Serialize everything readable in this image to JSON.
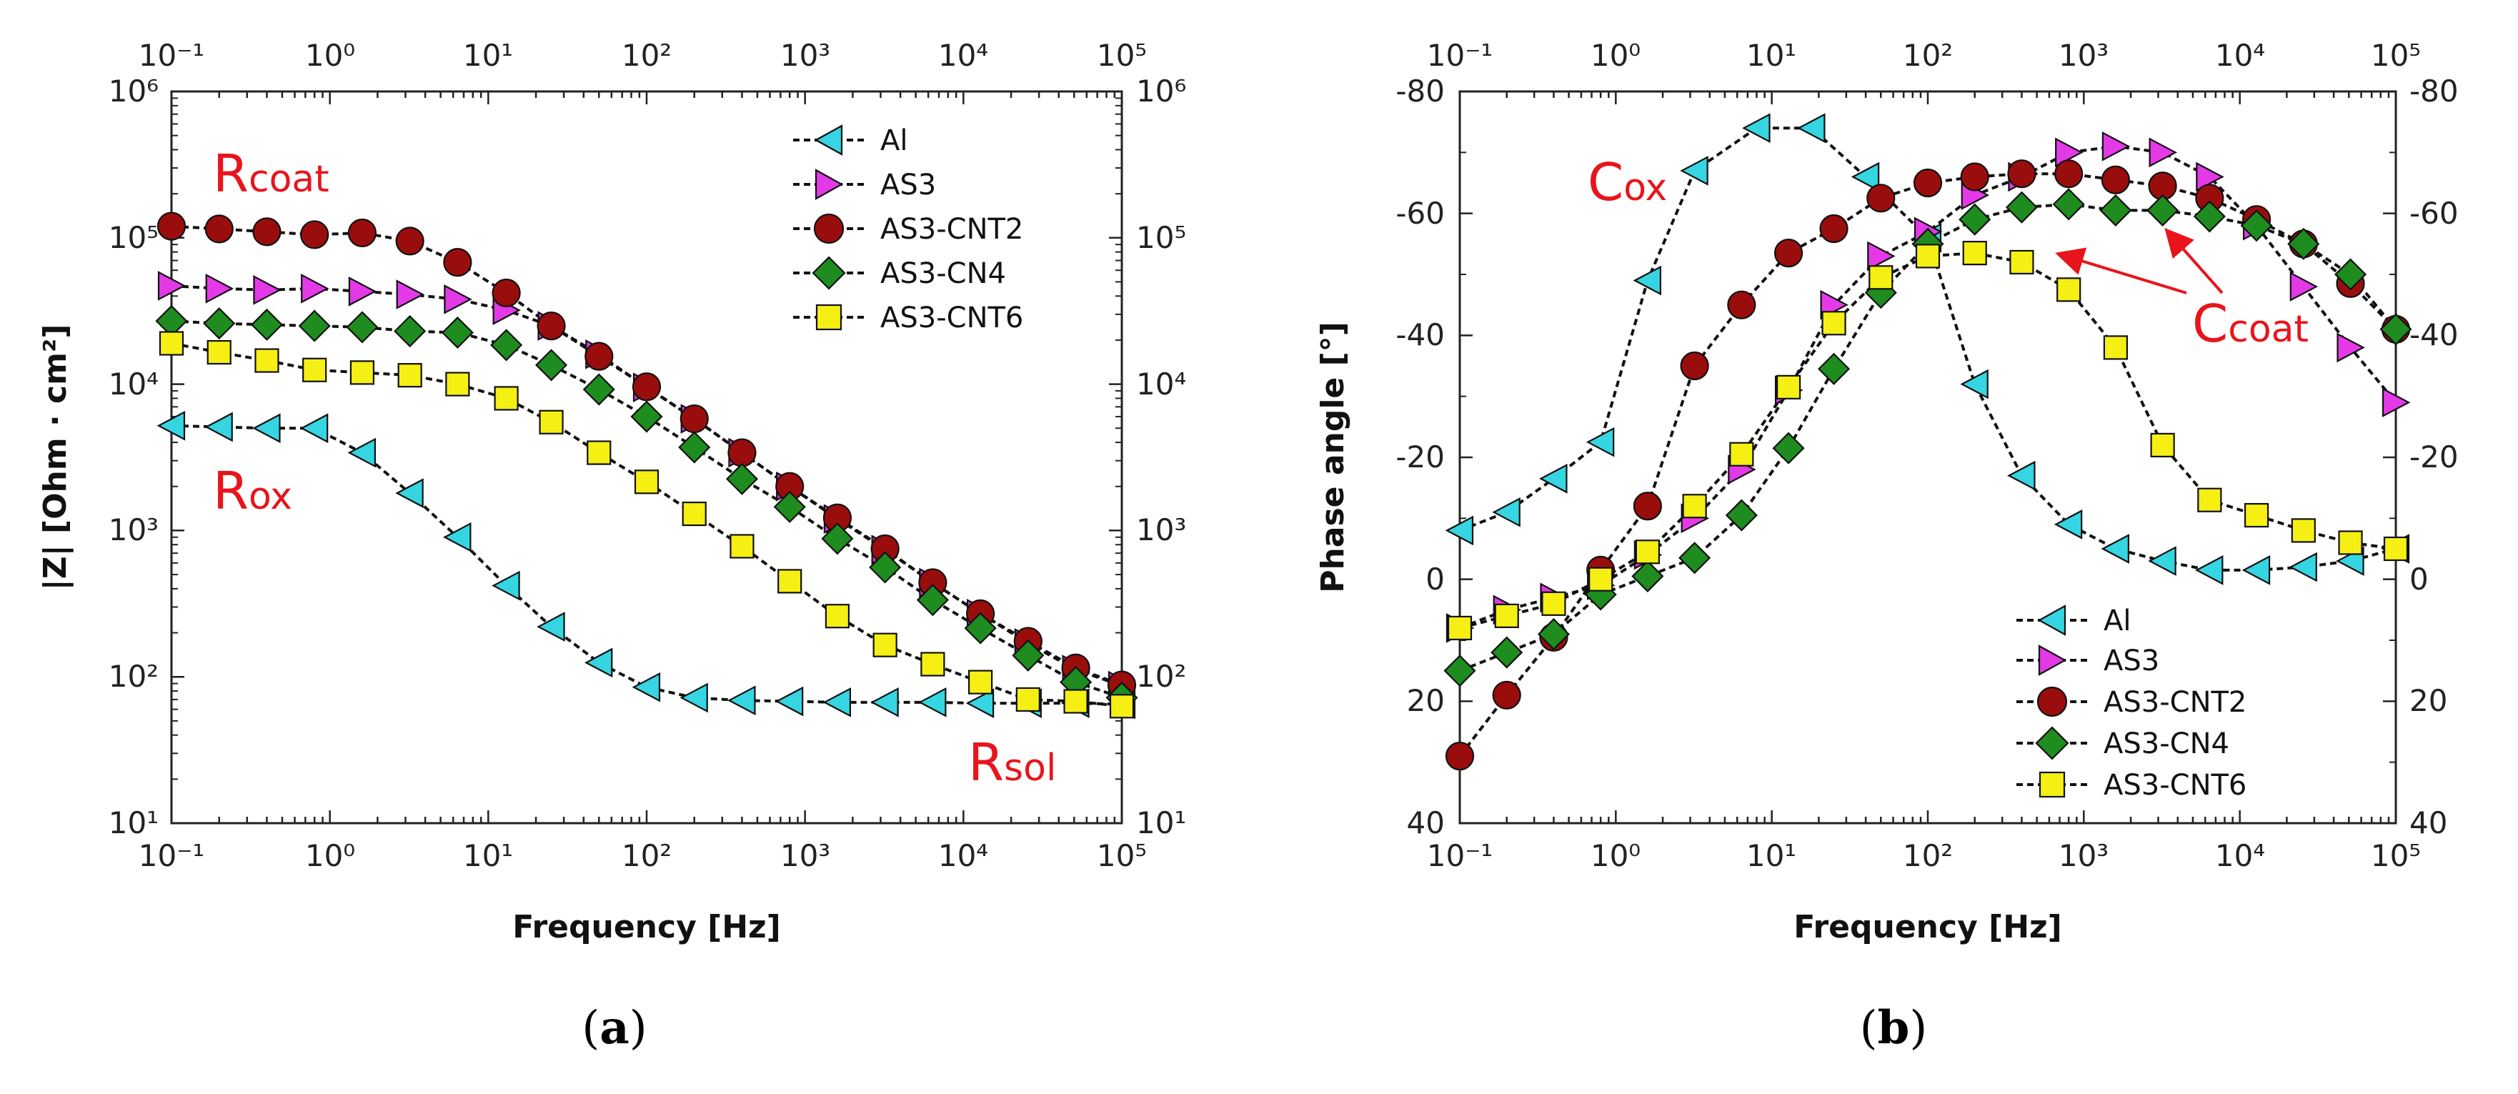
{
  "styles": {
    "colors": {
      "Al": "#35d5e2",
      "AS3": "#e339e6",
      "AS3-CNT2": "#9a0d0d",
      "AS3-CN4": "#1e8c1e",
      "AS3-CNT6": "#f6ef14",
      "annotation": "#e8141c"
    },
    "markers": {
      "Al": "triangle-left",
      "AS3": "triangle-right",
      "AS3-CNT2": "circle",
      "AS3-CN4": "diamond",
      "AS3-CNT6": "square"
    }
  },
  "chart_data": [
    {
      "id": "a",
      "type": "line",
      "caption": "(a)",
      "caption_letter": "a",
      "xlabel": "Frequency [Hz]",
      "ylabel": "|Z| [Ohm · cm²]",
      "xscale": "log",
      "yscale": "log",
      "xlim_exp": [
        -1,
        5
      ],
      "ylim_exp": [
        1,
        6
      ],
      "x_tick_labels": [
        "10⁻¹",
        "10⁰",
        "10¹",
        "10²",
        "10³",
        "10⁴",
        "10⁵"
      ],
      "y_tick_labels": [
        "10¹",
        "10²",
        "10³",
        "10⁴",
        "10⁵",
        "10⁶"
      ],
      "legend_position": "top-right",
      "annotations": [
        {
          "base": "R",
          "sub": "coat"
        },
        {
          "base": "R",
          "sub": "ox"
        },
        {
          "base": "R",
          "sub": "sol"
        }
      ],
      "series": [
        {
          "name": "Al",
          "x": [
            0.1,
            0.2,
            0.4,
            0.8,
            1.6,
            3.2,
            6.4,
            13,
            25,
            50,
            100,
            200,
            400,
            800,
            1600,
            3200,
            6400,
            12800,
            25600,
            51200,
            100000
          ],
          "y": [
            5200,
            5100,
            5000,
            5000,
            3400,
            1800,
            900,
            420,
            220,
            125,
            85,
            72,
            69,
            68,
            67,
            67,
            67,
            66,
            66,
            66,
            65
          ]
        },
        {
          "name": "AS3",
          "x": [
            0.1,
            0.2,
            0.4,
            0.8,
            1.6,
            3.2,
            6.4,
            13,
            25,
            50,
            100,
            200,
            400,
            800,
            1600,
            3200,
            6400,
            12800,
            25600,
            51200,
            100000
          ],
          "y": [
            47000,
            45000,
            44000,
            45000,
            43000,
            41000,
            38000,
            32000,
            25000,
            16000,
            9500,
            5800,
            3400,
            2000,
            1200,
            740,
            440,
            270,
            170,
            112,
            87
          ]
        },
        {
          "name": "AS3-CNT2",
          "x": [
            0.1,
            0.2,
            0.4,
            0.8,
            1.6,
            3.2,
            6.4,
            13,
            25,
            50,
            100,
            200,
            400,
            800,
            1600,
            3200,
            6400,
            12800,
            25600,
            51200,
            100000
          ],
          "y": [
            120000,
            115000,
            110000,
            105000,
            108000,
            95000,
            68000,
            42000,
            25000,
            15500,
            9600,
            5800,
            3400,
            2000,
            1220,
            750,
            440,
            270,
            175,
            115,
            88
          ]
        },
        {
          "name": "AS3-CN4",
          "x": [
            0.1,
            0.2,
            0.4,
            0.8,
            1.6,
            3.2,
            6.4,
            13,
            25,
            50,
            100,
            200,
            400,
            800,
            1600,
            3200,
            6400,
            12800,
            25600,
            51200,
            100000
          ],
          "y": [
            27000,
            26000,
            25500,
            25000,
            24500,
            23000,
            22500,
            18500,
            13500,
            9200,
            6000,
            3700,
            2250,
            1450,
            880,
            560,
            335,
            215,
            140,
            92,
            72
          ]
        },
        {
          "name": "AS3-CNT6",
          "x": [
            0.1,
            0.2,
            0.4,
            0.8,
            1.6,
            3.2,
            6.4,
            13,
            25,
            50,
            100,
            200,
            400,
            800,
            1600,
            3200,
            6400,
            12800,
            25600,
            51200,
            100000
          ],
          "y": [
            19000,
            16500,
            14500,
            12500,
            12000,
            11500,
            10000,
            8000,
            5500,
            3400,
            2150,
            1300,
            780,
            450,
            260,
            165,
            122,
            92,
            70,
            68,
            63
          ]
        }
      ]
    },
    {
      "id": "b",
      "type": "line",
      "caption": "(b)",
      "caption_letter": "b",
      "xlabel": "Frequency [Hz]",
      "ylabel": "Phase angle [°]",
      "xscale": "log",
      "xlim_exp": [
        -1,
        5
      ],
      "ylim": [
        40,
        -80
      ],
      "x_tick_labels": [
        "10⁻¹",
        "10⁰",
        "10¹",
        "10²",
        "10³",
        "10⁴",
        "10⁵"
      ],
      "y_tick_labels": [
        "-80",
        "-60",
        "-40",
        "-20",
        "0",
        "20",
        "40"
      ],
      "legend_position": "bottom-right",
      "annotations": [
        {
          "base": "C",
          "sub": "ox"
        },
        {
          "base": "C",
          "sub": "coat"
        }
      ],
      "series": [
        {
          "name": "Al",
          "x": [
            0.1,
            0.2,
            0.4,
            0.8,
            1.6,
            3.2,
            8,
            18,
            40,
            100,
            200,
            400,
            800,
            1600,
            3200,
            6400,
            12800,
            25600,
            51200,
            100000
          ],
          "y": [
            -8,
            -11,
            -16.5,
            -22.5,
            -49,
            -67,
            -74,
            -74,
            -66,
            -56,
            -32,
            -17,
            -9,
            -5,
            -3,
            -1.5,
            -1.5,
            -2,
            -3,
            -5
          ]
        },
        {
          "name": "AS3",
          "x": [
            0.1,
            0.2,
            0.4,
            0.8,
            1.6,
            3.2,
            6.4,
            12.8,
            25,
            50,
            100,
            200,
            400,
            800,
            1600,
            3200,
            6400,
            12800,
            25600,
            51200,
            100000
          ],
          "y": [
            8,
            5,
            3,
            1,
            -4,
            -10,
            -18,
            -31,
            -45,
            -53,
            -57,
            -63,
            -66,
            -70,
            -71,
            -70,
            -66,
            -58,
            -48,
            -38,
            -29
          ]
        },
        {
          "name": "AS3-CNT2",
          "x": [
            0.1,
            0.2,
            0.4,
            0.8,
            1.6,
            3.2,
            6.4,
            12.8,
            25,
            50,
            100,
            200,
            400,
            800,
            1600,
            3200,
            6400,
            12800,
            25600,
            51200,
            100000
          ],
          "y": [
            29,
            19,
            9.5,
            -1.5,
            -12,
            -35,
            -45,
            -53.5,
            -57.5,
            -62.5,
            -65,
            -66,
            -66.5,
            -66.5,
            -65.5,
            -64.5,
            -62.5,
            -59,
            -55,
            -48.5,
            -41
          ]
        },
        {
          "name": "AS3-CN4",
          "x": [
            0.1,
            0.2,
            0.4,
            0.8,
            1.6,
            3.2,
            6.4,
            12.8,
            25,
            50,
            100,
            200,
            400,
            800,
            1600,
            3200,
            6400,
            12800,
            25600,
            51200,
            100000
          ],
          "y": [
            15,
            12,
            9,
            2.5,
            -0.5,
            -3.5,
            -10.5,
            -21.5,
            -34.5,
            -47,
            -55,
            -59,
            -61,
            -61.5,
            -60.5,
            -60.5,
            -59.5,
            -58,
            -55,
            -50,
            -41
          ]
        },
        {
          "name": "AS3-CNT6",
          "x": [
            0.1,
            0.2,
            0.4,
            0.8,
            1.6,
            3.2,
            6.4,
            12.8,
            25,
            50,
            100,
            200,
            400,
            800,
            1600,
            3200,
            6400,
            12800,
            25600,
            51200,
            100000
          ],
          "y": [
            8,
            6,
            4,
            0,
            -4.5,
            -12,
            -20.5,
            -31.5,
            -42,
            -49.5,
            -53,
            -53.5,
            -52,
            -47.5,
            -38,
            -22,
            -13,
            -10.5,
            -8,
            -6,
            -5
          ]
        }
      ]
    }
  ]
}
